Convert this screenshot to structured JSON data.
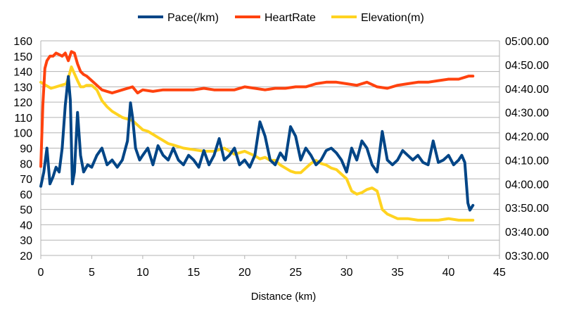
{
  "chart_data": {
    "type": "line",
    "title": "",
    "xlabel": "Distance (km)",
    "legend_position": "top",
    "grid": true,
    "x_axis": {
      "range": [
        0,
        45
      ],
      "ticks": [
        "0",
        "5",
        "10",
        "15",
        "20",
        "25",
        "30",
        "35",
        "40",
        "45"
      ],
      "tick_values": [
        0,
        5,
        10,
        15,
        20,
        25,
        30,
        35,
        40,
        45
      ]
    },
    "y_axis_left": {
      "range": [
        20,
        160
      ],
      "ticks": [
        "20",
        "30",
        "40",
        "50",
        "60",
        "70",
        "80",
        "90",
        "100",
        "110",
        "120",
        "130",
        "140",
        "150",
        "160"
      ],
      "tick_values": [
        20,
        30,
        40,
        50,
        60,
        70,
        80,
        90,
        100,
        110,
        120,
        130,
        140,
        150,
        160
      ]
    },
    "y_axis_right": {
      "range_seconds": [
        210,
        300
      ],
      "ticks": [
        "03:30.00",
        "03:40.00",
        "03:50.00",
        "04:00.00",
        "04:10.00",
        "04:20.00",
        "04:30.00",
        "04:40.00",
        "04:50.00",
        "05:00.00"
      ]
    },
    "series": [
      {
        "name": "Pace(/km)",
        "color": "#004586",
        "axis": "right",
        "unit": "min:sec per km",
        "x": [
          0,
          0.3,
          0.6,
          0.9,
          1.2,
          1.5,
          1.8,
          2.1,
          2.4,
          2.7,
          2.9,
          3.1,
          3.3,
          3.6,
          3.9,
          4.2,
          4.6,
          5,
          5.5,
          6,
          6.5,
          7,
          7.5,
          8,
          8.5,
          8.8,
          9.0,
          9.3,
          9.7,
          10,
          10.5,
          11,
          11.5,
          12,
          12.5,
          13,
          13.5,
          14,
          14.5,
          15,
          15.5,
          16,
          16.5,
          17,
          17.5,
          18,
          18.5,
          19,
          19.5,
          20,
          20.5,
          21,
          21.5,
          22,
          22.5,
          23,
          23.5,
          24,
          24.5,
          25,
          25.5,
          26,
          26.5,
          27,
          27.5,
          28,
          28.5,
          29,
          29.5,
          30,
          30.5,
          31,
          31.5,
          32,
          32.5,
          33,
          33.5,
          34,
          34.5,
          35,
          35.5,
          36,
          36.5,
          37,
          37.5,
          38,
          38.5,
          39,
          39.5,
          40,
          40.5,
          41,
          41.3,
          41.6,
          41.9,
          42.1,
          42.4
        ],
        "values": [
          "03:59",
          "04:05",
          "04:15",
          "04:00",
          "04:03",
          "04:07",
          "04:05",
          "04:15",
          "04:33",
          "04:45",
          "04:35",
          "04:00",
          "04:05",
          "04:30",
          "04:12",
          "04:05",
          "04:08",
          "04:07",
          "04:12",
          "04:15",
          "04:08",
          "04:10",
          "04:07",
          "04:10",
          "04:18",
          "04:34",
          "04:28",
          "04:15",
          "04:10",
          "04:12",
          "04:15",
          "04:08",
          "04:16",
          "04:12",
          "04:10",
          "04:15",
          "04:10",
          "04:08",
          "04:12",
          "04:10",
          "04:07",
          "04:14",
          "04:08",
          "04:12",
          "04:19",
          "04:10",
          "04:12",
          "04:15",
          "04:08",
          "04:10",
          "04:07",
          "04:12",
          "04:26",
          "04:20",
          "04:10",
          "04:08",
          "04:13",
          "04:10",
          "04:24",
          "04:20",
          "04:10",
          "04:15",
          "04:12",
          "04:08",
          "04:10",
          "04:14",
          "04:15",
          "04:13",
          "04:10",
          "04:05",
          "04:15",
          "04:10",
          "04:18",
          "04:15",
          "04:08",
          "04:05",
          "04:22",
          "04:10",
          "04:08",
          "04:10",
          "04:14",
          "04:12",
          "04:10",
          "04:12",
          "04:09",
          "04:08",
          "04:18",
          "04:09",
          "04:10",
          "04:12",
          "04:08",
          "04:10",
          "04:12",
          "04:09",
          "03:52",
          "03:49",
          "03:51"
        ]
      },
      {
        "name": "HeartRate",
        "color": "#ff420e",
        "axis": "left",
        "x": [
          0,
          0.2,
          0.4,
          0.6,
          0.9,
          1.2,
          1.5,
          1.8,
          2.1,
          2.4,
          2.7,
          3.0,
          3.3,
          3.6,
          3.9,
          4.2,
          4.5,
          5,
          5.5,
          6,
          6.5,
          7,
          8,
          9,
          9.5,
          10,
          11,
          12,
          13,
          14,
          15,
          16,
          17,
          18,
          19,
          20,
          21,
          22,
          23,
          24,
          25,
          26,
          27,
          28,
          29,
          30,
          31,
          32,
          33,
          34,
          35,
          36,
          37,
          38,
          39,
          40,
          41,
          42,
          42.4
        ],
        "values": [
          78,
          118,
          142,
          147,
          150,
          150,
          152,
          151,
          150,
          152,
          147,
          153,
          152,
          145,
          140,
          138,
          137,
          134,
          131,
          128,
          127,
          126,
          128,
          130,
          126,
          128,
          127,
          128,
          128,
          128,
          128,
          129,
          128,
          128,
          128,
          130,
          129,
          128,
          129,
          129,
          130,
          130,
          132,
          133,
          133,
          132,
          131,
          133,
          130,
          129,
          131,
          132,
          133,
          133,
          134,
          135,
          135,
          137,
          137
        ]
      },
      {
        "name": "Elevation(m)",
        "color": "#ffd320",
        "axis": "left",
        "x": [
          0,
          0.5,
          1,
          1.5,
          2,
          2.5,
          2.8,
          3.0,
          3.2,
          3.6,
          3.9,
          4.2,
          4.5,
          5,
          5.5,
          6,
          6.5,
          7,
          7.5,
          8,
          9,
          9.5,
          10,
          10.5,
          11,
          11.5,
          12,
          12.5,
          13,
          13.5,
          14,
          15,
          16,
          17,
          18,
          19,
          20,
          21,
          21.5,
          22,
          22.5,
          23,
          23.5,
          24,
          24.5,
          25,
          25.5,
          26,
          26.5,
          27,
          27.5,
          28,
          28.5,
          29,
          29.5,
          30,
          30.5,
          31,
          31.5,
          32,
          32.5,
          33,
          33.5,
          34,
          35,
          36,
          37,
          38,
          39,
          40,
          41,
          42,
          42.4
        ],
        "values": [
          133,
          131,
          129,
          130,
          131,
          132,
          138,
          143,
          140,
          134,
          130,
          130,
          131,
          131,
          128,
          121,
          117,
          114,
          112,
          110,
          108,
          105,
          102,
          101,
          99,
          97,
          95,
          93,
          92,
          91,
          90,
          89,
          88,
          88,
          90,
          86,
          88,
          85,
          83,
          84,
          82,
          82,
          79,
          77,
          75,
          74,
          74,
          77,
          80,
          82,
          80,
          79,
          77,
          76,
          73,
          70,
          62,
          60,
          61,
          63,
          64,
          62,
          50,
          47,
          44,
          44,
          43,
          43,
          43,
          44,
          43,
          43,
          43
        ]
      }
    ]
  }
}
